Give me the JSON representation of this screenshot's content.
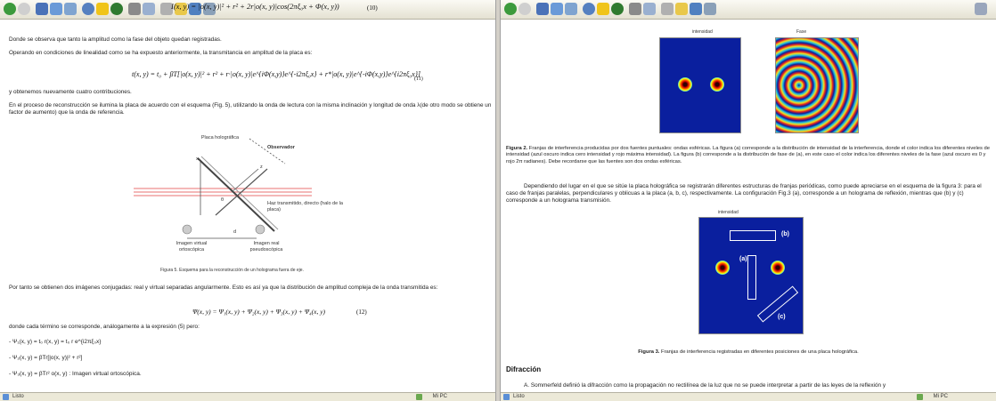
{
  "left": {
    "toolbar_formula": "I(x, y) = |o(x, y)|² + r² + 2r|o(x, y)|cos(2πξ₀x + Φ(x, y))",
    "toolbar_eq_number": "(10)",
    "p1": "Donde se observa que tanto la amplitud como la fase del objeto quedan registradas.",
    "p2": "Operando en condiciones de linealidad como se ha expuesto  anteriormente, la transmitancia en amplitud de la placa es:",
    "formula11": "t(x, y) = t₀ + βT[|o(x, y)|² + r² + r·|o(x, y)|e^{iΦ(x,y)}e^{-i2πξ₀x} + r*|o(x, y)|e^{-iΦ(x,y)}e^{i2πξ₀x}]",
    "formula11_number": "(11)",
    "p3": "y obtenemos nuevamente cuatro contribuciones.",
    "p4": "En el proceso de reconstrucción se ilumina la placa de acuerdo con el esquema (Fig. 5), utilizando  la onda de lectura  con la misma inclinación y longitud de onda λ(de otro modo se obtiene un factor de aumento) que la onda de referencia.",
    "diagram": {
      "placa": "Placa\nholográfica",
      "observador": "Observador",
      "haz": "Haz transmitido, directo\n(halo de la placa)",
      "virtual": "Imagen virtual\nortoscópica",
      "real": "Imagen real\npseudoscópica",
      "d": "d",
      "x": "x",
      "z": "z",
      "theta": "θ"
    },
    "fig5_caption": "Figura 5. Esquema para la reconstrucción de un holograma fuera de eje.",
    "p5": "Por tanto se obtienen dos imágenes conjugadas: real y virtual separadas angularmente. Esto es así ya que la distribución de amplitud compleja de la onda transmitida es:",
    "formula12": "Ψ(x, y) = Ψ₁(x, y) + Ψ₂(x, y) + Ψ₃(x, y) + Ψ₄(x, y)",
    "formula12_number": "(12)",
    "p6": "donde cada término se corresponde, análogamente a la expresión (5) pero:",
    "bullets": [
      "- Ψ₁(x, y) = t₀ r(x, y) = t₀ r e^{i2πξ₀x}",
      "- Ψ₂(x, y) = βTr[|o(x, y)|² + r²]",
      "- Ψ₃(x, y) = βTr² o(x, y) : Imagen virtual ortoscópica."
    ],
    "status_left": "Listo",
    "status_right": "Mi PC"
  },
  "right": {
    "fig2_title_a": "intensidad",
    "fig2_title_b": "Fase",
    "fig2_caption_bold": "Figura 2.",
    "fig2_caption": " Franjas de interferencia producidas por dos fuentes puntuales: ondas esféricas. La figura (a) corresponde a la distribución de intensidad de la interferencia, donde el color indica los diferentes niveles de intensidad (azul oscuro indica cero intensidad y rojo máxima intensidad). La figura (b) corresponde a la distribución de fase de (a), en este caso el color indica los diferentes niveles de la fase (azul oscuro es 0 y rojo 2π radianes). Debe recordarse que las fuentes son dos ondas esféricas.",
    "p1": "Dependiendo del lugar en el que se sitúe la placa holográfica se registrarán diferentes estructuras de franjas periódicas, como puede apreciarse en el esquema de la figura 3: para el caso de franjas paralelas, perpendiculares y oblicuas a la placa (a, b, c), respectivamente. La configuración Fig.3 (a), corresponde a un holograma de reflexión, mientras que  (b) y (c) corresponde a un holograma transmisión.",
    "fig3_title": "intensidad",
    "fig3_labels": [
      "(a)",
      "(b)",
      "(c)"
    ],
    "fig3_caption_bold": "Figura 3.",
    "fig3_caption": " Franjas de interferencia registradas en diferentes posiciones de una placa holográfica.",
    "heading": "Difracción",
    "p2": "A. Sommerfeld definió la difracción como la propagación no rectilínea de la luz que no se puede interpretar a partir de las leyes de la reflexión y",
    "status_left": "Listo",
    "status_right": "Mi PC"
  }
}
